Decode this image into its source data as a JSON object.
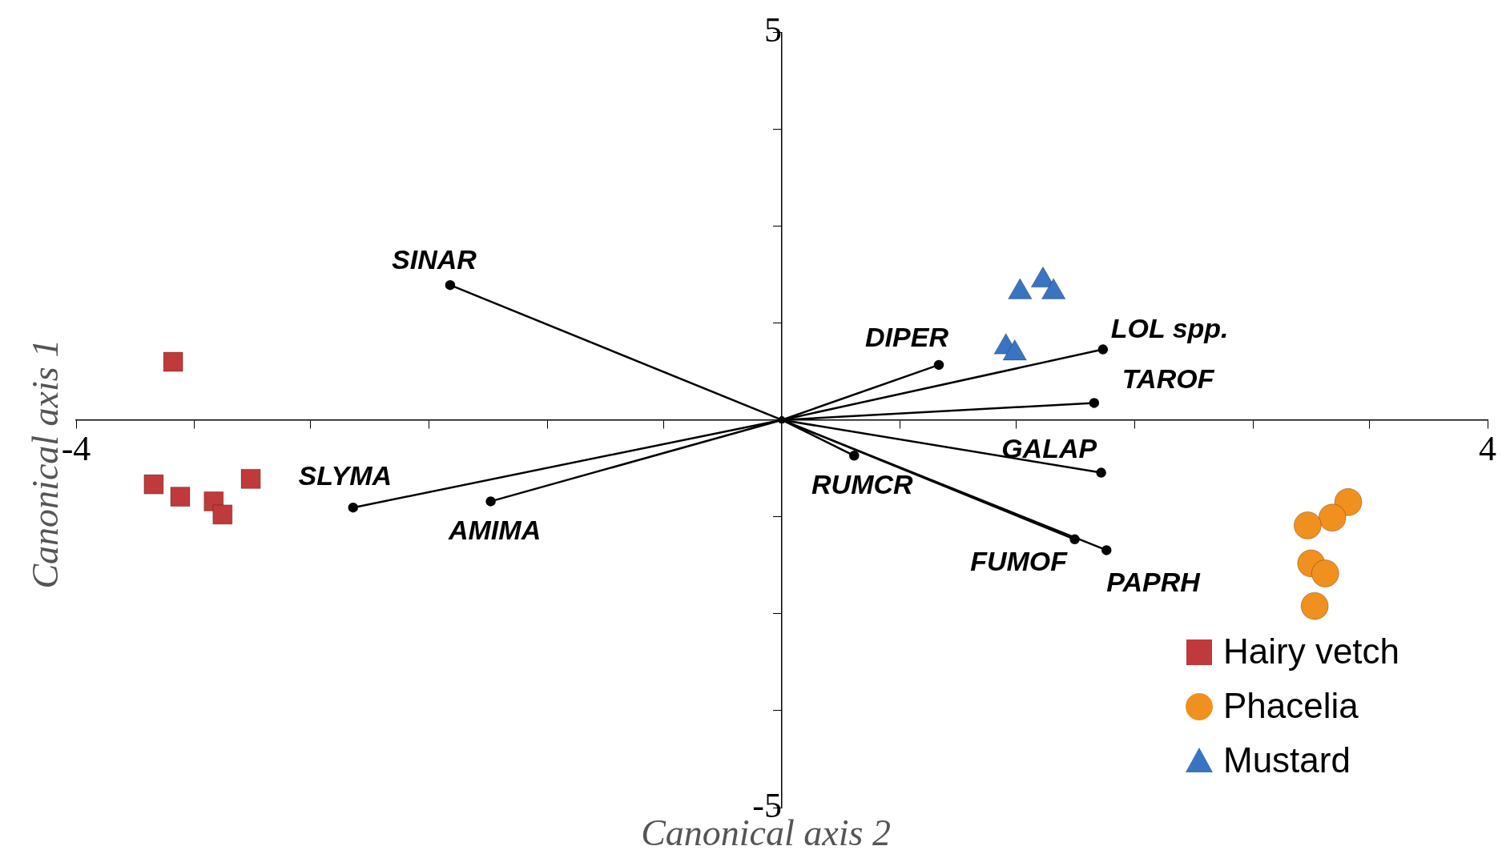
{
  "chart_data": {
    "type": "scatter",
    "xlabel": "Canonical axis 2",
    "ylabel": "Canonical axis 1",
    "xlim": [
      -4,
      4
    ],
    "ylim": [
      -5,
      5
    ],
    "xticks": [
      {
        "value": -4,
        "label": "-4"
      },
      {
        "value": -3.33,
        "label": null
      },
      {
        "value": -2.67,
        "label": null
      },
      {
        "value": -2,
        "label": null
      },
      {
        "value": -1.33,
        "label": null
      },
      {
        "value": -0.67,
        "label": null
      },
      {
        "value": 0.67,
        "label": null
      },
      {
        "value": 1.33,
        "label": null
      },
      {
        "value": 2,
        "label": null
      },
      {
        "value": 2.67,
        "label": null
      },
      {
        "value": 3.33,
        "label": null
      },
      {
        "value": 4,
        "label": "4"
      }
    ],
    "yticks": [
      {
        "value": -5,
        "label": "-5"
      },
      {
        "value": -3.75,
        "label": null
      },
      {
        "value": -2.5,
        "label": null
      },
      {
        "value": -1.25,
        "label": null
      },
      {
        "value": 1.25,
        "label": null
      },
      {
        "value": 2.5,
        "label": null
      },
      {
        "value": 3.75,
        "label": null
      },
      {
        "value": 5,
        "label": "5"
      }
    ],
    "grid": false,
    "legend": "bottom right",
    "series": [
      {
        "name": "Hairy vetch",
        "marker": "square",
        "color": "#c0393b",
        "x": [
          -3.45,
          -3.56,
          -3.41,
          -3.22,
          -3.17,
          -3.01
        ],
        "values": [
          0.75,
          -0.83,
          -0.99,
          -1.05,
          -1.22,
          -0.76
        ]
      },
      {
        "name": "Phacelia",
        "marker": "circle",
        "color": "#f0901e",
        "x": [
          3.21,
          3.12,
          2.98,
          3.0,
          3.08,
          3.02
        ],
        "values": [
          -1.06,
          -1.26,
          -1.36,
          -1.85,
          -1.98,
          -2.4
        ]
      },
      {
        "name": "Mustard",
        "marker": "triangle",
        "color": "#3a74c0",
        "x": [
          1.35,
          1.48,
          1.54,
          1.27,
          1.32
        ],
        "values": [
          1.65,
          1.8,
          1.65,
          0.94,
          0.86
        ]
      },
      {
        "name": "SINAR",
        "type": "line",
        "marker": "circle",
        "color": "#000000",
        "x": [
          0,
          -1.88
        ],
        "values": [
          0,
          1.74
        ]
      },
      {
        "name": "SLYMA",
        "type": "line",
        "marker": "circle",
        "color": "#000000",
        "x": [
          0,
          -2.43
        ],
        "values": [
          0,
          -1.13
        ]
      },
      {
        "name": "AMIMA",
        "type": "line",
        "marker": "circle",
        "color": "#000000",
        "x": [
          0,
          -1.65
        ],
        "values": [
          0,
          -1.05
        ]
      },
      {
        "name": "DIPER",
        "type": "line",
        "marker": "circle",
        "color": "#000000",
        "x": [
          0,
          0.89
        ],
        "values": [
          0,
          0.71
        ]
      },
      {
        "name": "LOL spp.",
        "type": "line",
        "marker": "circle",
        "color": "#000000",
        "x": [
          0,
          1.82
        ],
        "values": [
          0,
          0.91
        ]
      },
      {
        "name": "TAROF",
        "type": "line",
        "marker": "circle",
        "color": "#000000",
        "x": [
          0,
          1.77
        ],
        "values": [
          0,
          0.22
        ]
      },
      {
        "name": "GALAP",
        "type": "line",
        "marker": "circle",
        "color": "#000000",
        "x": [
          0,
          1.81
        ],
        "values": [
          0,
          -0.68
        ]
      },
      {
        "name": "RUMCR",
        "type": "line",
        "marker": "circle",
        "color": "#000000",
        "x": [
          0,
          0.41
        ],
        "values": [
          0,
          -0.46
        ]
      },
      {
        "name": "FUMOF",
        "type": "line",
        "marker": "circle",
        "color": "#000000",
        "x": [
          0,
          1.66
        ],
        "values": [
          0,
          -1.54
        ]
      },
      {
        "name": "PAPRH",
        "type": "line",
        "marker": "circle",
        "color": "#000000",
        "x": [
          0,
          1.84
        ],
        "values": [
          0,
          -1.68
        ]
      }
    ]
  }
}
